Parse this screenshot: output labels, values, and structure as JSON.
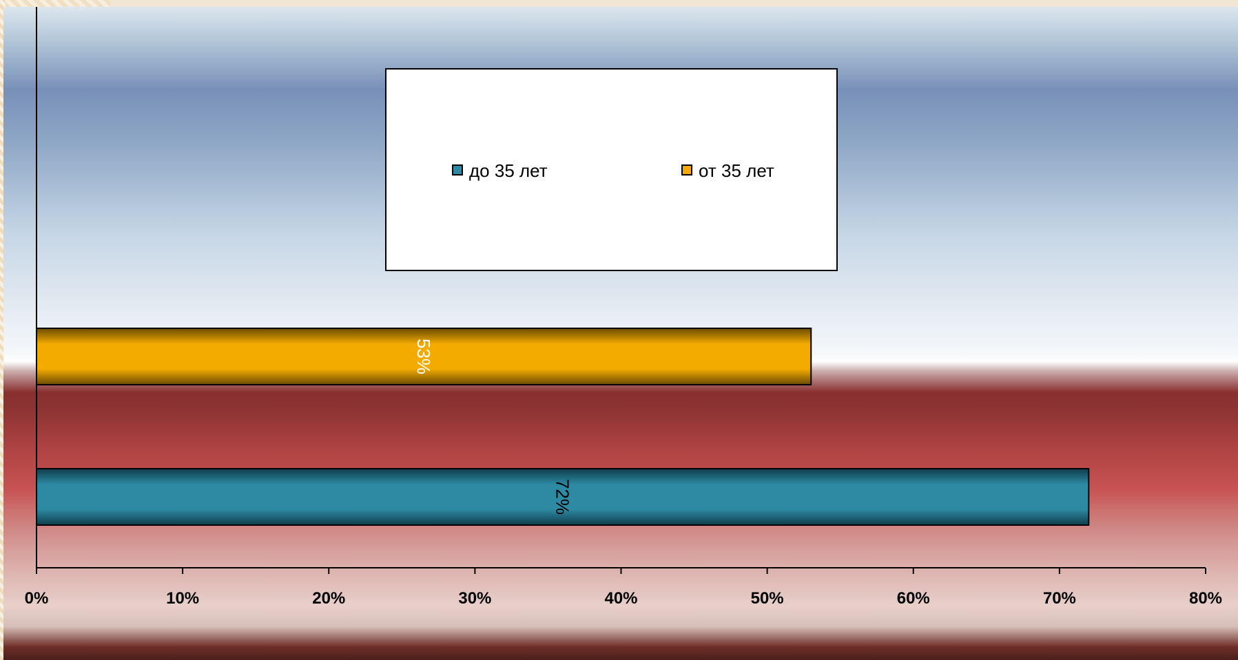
{
  "chart_data": {
    "type": "bar",
    "orientation": "horizontal",
    "series": [
      {
        "name": "до 35 лет",
        "value": 72,
        "label": "72%",
        "color": "#2e8aa3",
        "label_color": "#000000"
      },
      {
        "name": "от 35 лет",
        "value": 53,
        "label": "53%",
        "color": "#f3ab00",
        "label_color": "#ffffff"
      }
    ],
    "xlim": [
      0,
      80
    ],
    "x_ticks": [
      "0%",
      "10%",
      "20%",
      "30%",
      "40%",
      "50%",
      "60%",
      "70%",
      "80%"
    ],
    "legend_position": "top-center",
    "grid": false
  }
}
